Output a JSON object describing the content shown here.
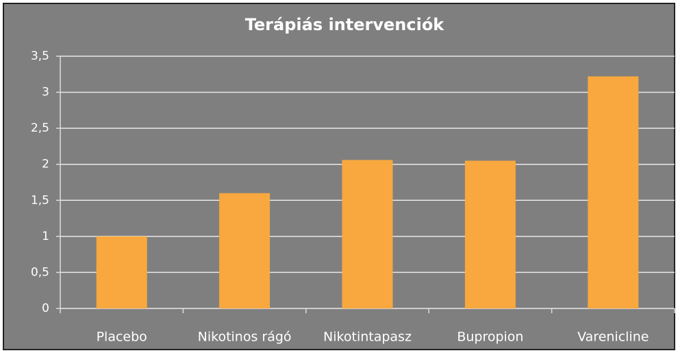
{
  "chart_data": {
    "type": "bar",
    "title": "Terápiás intervenciók",
    "categories": [
      "Placebo",
      "Nikotinos rágó",
      "Nikotintapasz",
      "Bupropion",
      "Varenicline"
    ],
    "values": [
      1.0,
      1.6,
      2.06,
      2.05,
      3.22
    ],
    "color": "#f8a83e",
    "ylim": [
      0,
      3.5
    ],
    "yticks": [
      0,
      {
        "value": 0.5,
        "label": "0,5"
      },
      1,
      {
        "value": 1.5,
        "label": "1,5"
      },
      2,
      {
        "value": 2.5,
        "label": "2,5"
      },
      3,
      {
        "value": 3.5,
        "label": "3,5"
      }
    ],
    "grid": true
  }
}
